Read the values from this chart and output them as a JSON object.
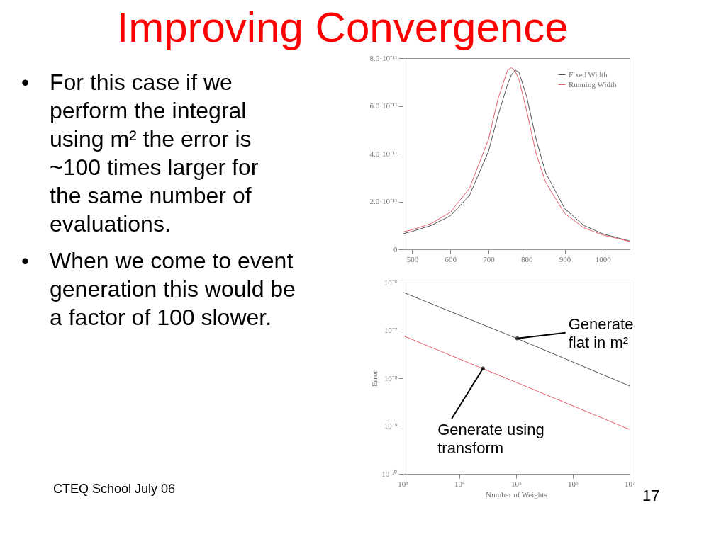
{
  "chart_data": [
    {
      "type": "line",
      "title": "Improving Convergence",
      "x": [
        475,
        500,
        550,
        600,
        650,
        700,
        725,
        750,
        760,
        770,
        780,
        800,
        825,
        850,
        900,
        950,
        1000,
        1070
      ],
      "series": [
        {
          "name": "Fixed Width",
          "color": "#555555",
          "values": [
            6.5e-12,
            7.5e-12,
            1e-11,
            1.4e-11,
            2.25e-11,
            4.1e-11,
            5.6e-11,
            6.9e-11,
            7.3e-11,
            7.5e-11,
            7.4e-11,
            6.4e-11,
            4.6e-11,
            3.2e-11,
            1.7e-11,
            1e-11,
            6.5e-12,
            3.5e-12
          ]
        },
        {
          "name": "Running Width",
          "color": "#e8606e",
          "values": [
            7.2e-12,
            8.2e-12,
            1.08e-11,
            1.55e-11,
            2.55e-11,
            4.6e-11,
            6.3e-11,
            7.5e-11,
            7.6e-11,
            7.45e-11,
            7.1e-11,
            5.8e-11,
            4e-11,
            2.8e-11,
            1.5e-11,
            9e-12,
            6e-12,
            3.3e-12
          ]
        }
      ],
      "xlim": [
        475,
        1070
      ],
      "xticks": [
        500,
        600,
        700,
        800,
        900,
        1000
      ],
      "ylim": [
        0,
        8e-11
      ],
      "yticks": [
        {
          "value": 0,
          "label": "0"
        },
        {
          "value": 2e-11,
          "label": "2.0·10⁻¹¹"
        },
        {
          "value": 4e-11,
          "label": "4.0·10⁻¹¹"
        },
        {
          "value": 6e-11,
          "label": "6.0·10⁻¹¹"
        },
        {
          "value": 8e-11,
          "label": "8.0·10⁻¹¹"
        }
      ],
      "legend": "top right",
      "grid": false,
      "annotations": [
        "• For this case if we perform the integral using m² the error is ~100 times larger for the same number of evaluations.",
        "• When we come to event generation this would be a factor of 100 slower.",
        "CTEQ School July 06",
        "17"
      ]
    },
    {
      "type": "line",
      "log": "xy",
      "x": [
        1000,
        100000,
        10000000
      ],
      "series": [
        {
          "color": "#555555",
          "values": [
            6.3e-07,
            6.9e-08,
            6.9e-09
          ]
        },
        {
          "color": "#e8606e",
          "values": [
            7.8e-08,
            8.2e-09,
            8.5e-10
          ]
        }
      ],
      "xlim": [
        1000,
        10000000
      ],
      "xticks": [
        {
          "value": 1000,
          "label": "10³"
        },
        {
          "value": 10000,
          "label": "10⁴"
        },
        {
          "value": 100000,
          "label": "10⁵"
        },
        {
          "value": 1000000,
          "label": "10⁶"
        },
        {
          "value": 10000000,
          "label": "10⁷"
        }
      ],
      "ylim": [
        1e-10,
        1e-06
      ],
      "yticks": [
        {
          "value": 1e-10,
          "label": "10⁻¹⁰"
        },
        {
          "value": 1e-09,
          "label": "10⁻⁹"
        },
        {
          "value": 1e-08,
          "label": "10⁻⁸"
        },
        {
          "value": 1e-07,
          "label": "10⁻⁷"
        },
        {
          "value": 1e-06,
          "label": "10⁻⁶"
        }
      ],
      "xlabel": "Number of Weights",
      "ylabel": "Error",
      "grid": false,
      "annotations": [
        {
          "text": "Generate\nflat in m²",
          "x": 105000,
          "y": 6.8e-08
        },
        {
          "text": "Generate using\ntransform",
          "x": 26000,
          "y": 1.6e-08
        }
      ]
    }
  ]
}
